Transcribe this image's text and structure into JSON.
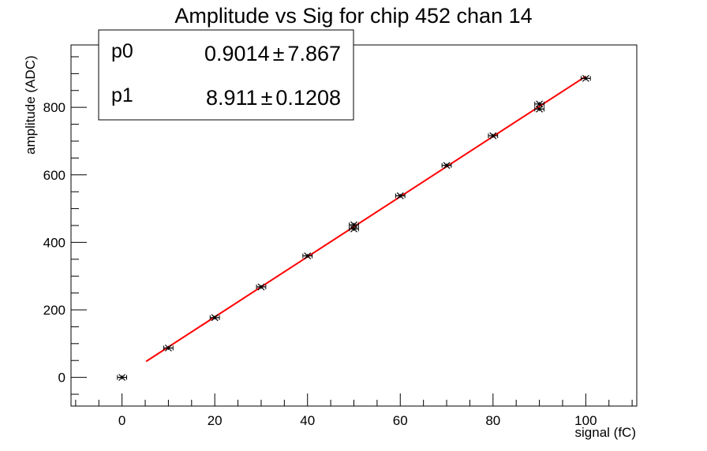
{
  "chart_data": {
    "type": "scatter",
    "title": "Amplitude vs Sig for chip 452 chan 14",
    "xlabel": "signal (fC)",
    "ylabel": "amplitude (ADC)",
    "xlim": [
      -11,
      111
    ],
    "ylim": [
      -85,
      985
    ],
    "xticks": [
      0,
      20,
      40,
      60,
      80,
      100
    ],
    "yticks": [
      0,
      200,
      400,
      600,
      800
    ],
    "grid": false,
    "points": [
      {
        "x": 0,
        "y": 0
      },
      {
        "x": 10,
        "y": 87
      },
      {
        "x": 20,
        "y": 177
      },
      {
        "x": 30,
        "y": 268
      },
      {
        "x": 40,
        "y": 360
      },
      {
        "x": 50,
        "y": 440
      },
      {
        "x": 50,
        "y": 452
      },
      {
        "x": 60,
        "y": 538
      },
      {
        "x": 70,
        "y": 628
      },
      {
        "x": 80,
        "y": 716
      },
      {
        "x": 90,
        "y": 795
      },
      {
        "x": 90,
        "y": 810
      },
      {
        "x": 100,
        "y": 886
      }
    ],
    "x_error": 1,
    "y_error": 6,
    "fit": {
      "type": "linear",
      "x_range": [
        5.2,
        100
      ],
      "color": "#ff0000"
    },
    "stats_box": {
      "placement": "top-left",
      "rows": [
        {
          "name": "p0",
          "value": "0.9014",
          "pm": "±",
          "error": "7.867",
          "num": 0.9014
        },
        {
          "name": "p1",
          "value": "8.911",
          "pm": "±",
          "error": "0.1208",
          "num": 8.911
        }
      ]
    }
  }
}
